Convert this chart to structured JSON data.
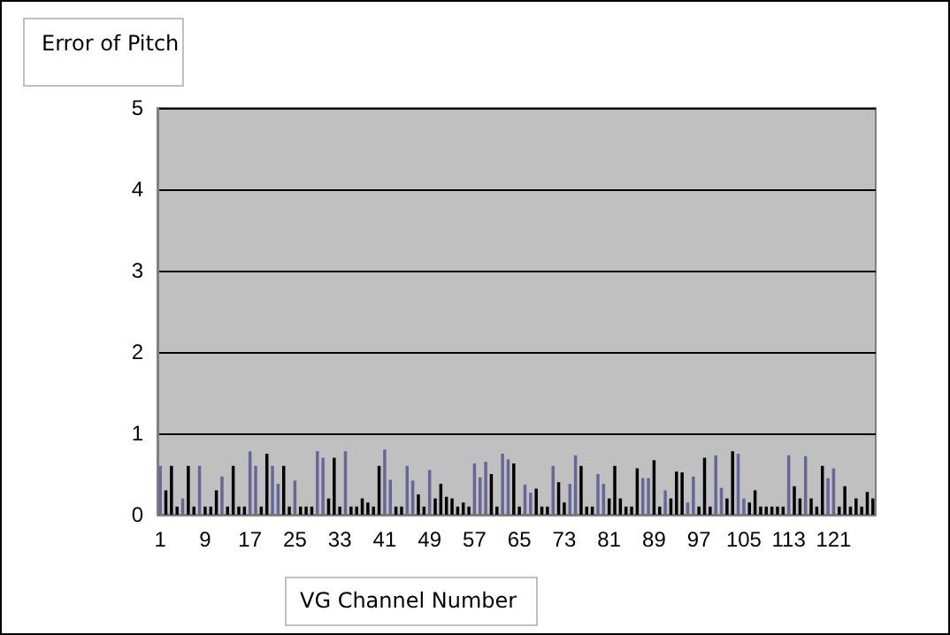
{
  "chart_data": {
    "type": "bar",
    "xlabel": "VG Channel Number",
    "ylabel": "Error of Pitch",
    "categories": [
      "1",
      null,
      null,
      null,
      null,
      null,
      null,
      null,
      "9",
      null,
      null,
      null,
      null,
      null,
      null,
      null,
      "17",
      null,
      null,
      null,
      null,
      null,
      null,
      null,
      "25",
      null,
      null,
      null,
      null,
      null,
      null,
      null,
      "33",
      null,
      null,
      null,
      null,
      null,
      null,
      null,
      "41",
      null,
      null,
      null,
      null,
      null,
      null,
      null,
      "49",
      null,
      null,
      null,
      null,
      null,
      null,
      null,
      "57",
      null,
      null,
      null,
      null,
      null,
      null,
      null,
      "65",
      null,
      null,
      null,
      null,
      null,
      null,
      null,
      "73",
      null,
      null,
      null,
      null,
      null,
      null,
      null,
      "81",
      null,
      null,
      null,
      null,
      null,
      null,
      null,
      "89",
      null,
      null,
      null,
      null,
      null,
      null,
      null,
      "97",
      null,
      null,
      null,
      null,
      null,
      null,
      null,
      "105",
      null,
      null,
      null,
      null,
      null,
      null,
      null,
      "113",
      null,
      null,
      null,
      null,
      null,
      null,
      null,
      "121",
      null,
      null,
      null,
      null,
      null,
      null,
      null
    ],
    "values": [
      0.6,
      0.3,
      0.6,
      0.1,
      0.2,
      0.6,
      0.1,
      0.6,
      0.1,
      0.1,
      0.3,
      0.47,
      0.1,
      0.6,
      0.1,
      0.1,
      0.78,
      0.6,
      0.1,
      0.75,
      0.6,
      0.38,
      0.6,
      0.1,
      0.42,
      0.1,
      0.1,
      0.1,
      0.78,
      0.7,
      0.2,
      0.7,
      0.1,
      0.78,
      0.1,
      0.1,
      0.2,
      0.15,
      0.1,
      0.6,
      0.8,
      0.43,
      0.1,
      0.1,
      0.6,
      0.42,
      0.25,
      0.1,
      0.55,
      0.2,
      0.38,
      0.22,
      0.2,
      0.1,
      0.15,
      0.1,
      0.63,
      0.46,
      0.65,
      0.5,
      0.1,
      0.75,
      0.68,
      0.63,
      0.1,
      0.37,
      0.27,
      0.32,
      0.1,
      0.1,
      0.6,
      0.4,
      0.15,
      0.38,
      0.73,
      0.6,
      0.1,
      0.1,
      0.5,
      0.38,
      0.2,
      0.6,
      0.2,
      0.1,
      0.1,
      0.57,
      0.45,
      0.45,
      0.67,
      0.1,
      0.3,
      0.2,
      0.53,
      0.52,
      0.15,
      0.47,
      0.1,
      0.7,
      0.1,
      0.73,
      0.33,
      0.2,
      0.78,
      0.75,
      0.2,
      0.15,
      0.3,
      0.1,
      0.1,
      0.1,
      0.1,
      0.1,
      0.73,
      0.35,
      0.2,
      0.72,
      0.2,
      0.1,
      0.6,
      0.45,
      0.57,
      0.1,
      0.35,
      0.1,
      0.2,
      0.1,
      0.28,
      0.2
    ],
    "colors": [
      "#666699",
      "#000000",
      "#000000",
      "#000000",
      "#666699",
      "#000000",
      "#000000",
      "#666699",
      "#000000",
      "#000000",
      "#000000",
      "#666699",
      "#000000",
      "#000000",
      "#000000",
      "#000000",
      "#666699",
      "#666699",
      "#000000",
      "#000000",
      "#666699",
      "#666699",
      "#000000",
      "#000000",
      "#666699",
      "#000000",
      "#000000",
      "#000000",
      "#666699",
      "#666699",
      "#000000",
      "#000000",
      "#000000",
      "#666699",
      "#000000",
      "#000000",
      "#000000",
      "#000000",
      "#000000",
      "#000000",
      "#666699",
      "#666699",
      "#000000",
      "#000000",
      "#666699",
      "#666699",
      "#000000",
      "#000000",
      "#666699",
      "#000000",
      "#000000",
      "#000000",
      "#000000",
      "#000000",
      "#000000",
      "#000000",
      "#666699",
      "#666699",
      "#666699",
      "#000000",
      "#000000",
      "#666699",
      "#666699",
      "#000000",
      "#000000",
      "#666699",
      "#666699",
      "#000000",
      "#000000",
      "#000000",
      "#666699",
      "#000000",
      "#000000",
      "#666699",
      "#666699",
      "#000000",
      "#000000",
      "#000000",
      "#666699",
      "#666699",
      "#000000",
      "#000000",
      "#000000",
      "#000000",
      "#000000",
      "#000000",
      "#666699",
      "#666699",
      "#000000",
      "#000000",
      "#666699",
      "#000000",
      "#000000",
      "#000000",
      "#666699",
      "#666699",
      "#000000",
      "#000000",
      "#000000",
      "#666699",
      "#666699",
      "#000000",
      "#000000",
      "#666699",
      "#666699",
      "#000000",
      "#000000",
      "#000000",
      "#000000",
      "#000000",
      "#000000",
      "#000000",
      "#666699",
      "#000000",
      "#000000",
      "#666699",
      "#000000",
      "#000000",
      "#000000",
      "#666699",
      "#666699",
      "#000000",
      "#000000",
      "#000000",
      "#000000",
      "#000000",
      "#000000",
      "#000000"
    ],
    "ylim": [
      0,
      5
    ],
    "yticks": [
      0,
      1,
      2,
      3,
      4,
      5
    ],
    "grid": "y"
  }
}
